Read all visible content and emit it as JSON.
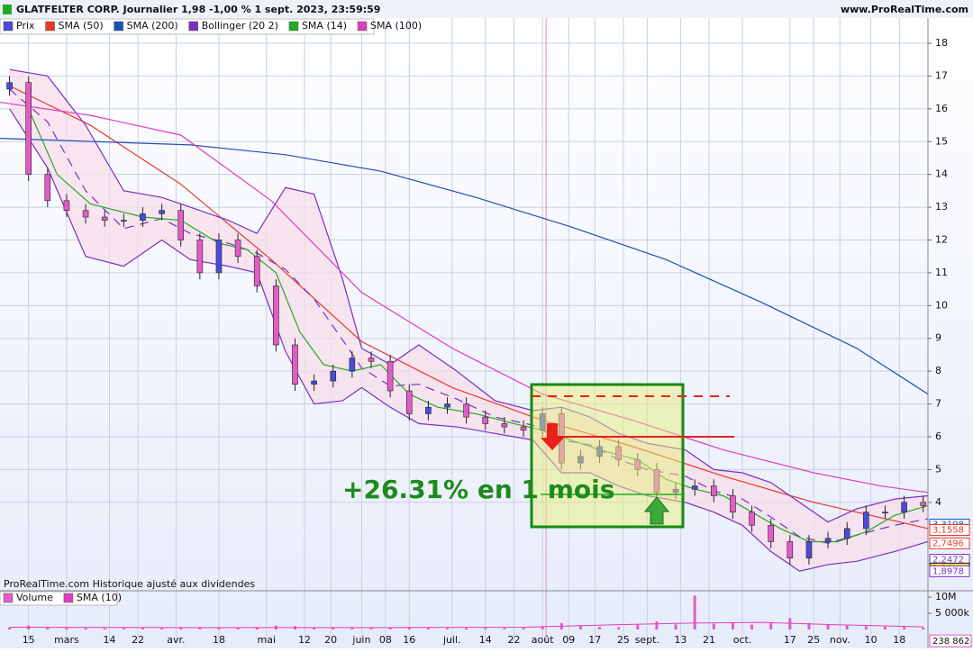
{
  "chart_data": {
    "type": "candlestick",
    "title": "GLATFELTER CORP. Journalier 1,98 -1,00 % 1 sept. 2023, 23:59:59",
    "source": "www.ProRealTime.com",
    "footer": "ProRealTime.com  Historique ajusté aux dividendes",
    "annotation": "+26.31% en 1 mois",
    "xlim": [
      0,
      195
    ],
    "xticks": [
      {
        "value": 6,
        "label": "15"
      },
      {
        "value": 14,
        "label": "mars"
      },
      {
        "value": 23,
        "label": "14"
      },
      {
        "value": 29,
        "label": "22"
      },
      {
        "value": 37,
        "label": "avr."
      },
      {
        "value": 46,
        "label": "18"
      },
      {
        "value": 56,
        "label": "mai"
      },
      {
        "value": 64,
        "label": "12"
      },
      {
        "value": 69.5,
        "label": "20"
      },
      {
        "value": 76,
        "label": "juin"
      },
      {
        "value": 81,
        "label": "08"
      },
      {
        "value": 86,
        "label": "16"
      },
      {
        "value": 95,
        "label": "juil."
      },
      {
        "value": 102,
        "label": "14"
      },
      {
        "value": 108,
        "label": "22"
      },
      {
        "value": 114,
        "label": "août"
      },
      {
        "value": 119.5,
        "label": "09"
      },
      {
        "value": 125,
        "label": "17"
      },
      {
        "value": 131,
        "label": "25"
      },
      {
        "value": 136,
        "label": "sept."
      },
      {
        "value": 143,
        "label": "13"
      },
      {
        "value": 149,
        "label": "21"
      },
      {
        "value": 156,
        "label": "oct."
      },
      {
        "value": 166,
        "label": "17"
      },
      {
        "value": 171,
        "label": "25"
      },
      {
        "value": 176.5,
        "label": "nov."
      },
      {
        "value": 183,
        "label": "10"
      },
      {
        "value": 189,
        "label": "18"
      }
    ],
    "ylim": [
      1.33,
      18.77
    ],
    "yticks": [
      4,
      5,
      6,
      7,
      8,
      9,
      10,
      11,
      12,
      13,
      14,
      15,
      16,
      17,
      18
    ],
    "grid": true,
    "candles": {
      "name": "Prix",
      "up_color": "#4b4bd8",
      "down_color": "#e35bc6",
      "x": [
        2,
        6,
        10,
        14,
        18,
        22,
        26,
        30,
        34,
        38,
        42,
        46,
        50,
        54,
        58,
        62,
        66,
        70,
        74,
        78,
        82,
        86,
        90,
        94,
        98,
        102,
        106,
        110,
        114,
        118,
        122,
        126,
        130,
        134,
        138,
        142,
        146,
        150,
        154,
        158,
        162,
        166,
        170,
        174,
        178,
        182,
        186,
        190,
        194
      ],
      "open": [
        16.6,
        16.8,
        14.0,
        13.2,
        12.9,
        12.7,
        12.6,
        12.6,
        12.8,
        12.9,
        12.0,
        11.0,
        12.0,
        11.5,
        10.6,
        8.8,
        7.6,
        7.7,
        8.0,
        8.4,
        8.3,
        7.4,
        6.7,
        6.9,
        7.0,
        6.6,
        6.4,
        6.3,
        6.2,
        6.7,
        5.2,
        5.4,
        5.7,
        5.3,
        5.0,
        4.3,
        4.4,
        4.5,
        4.2,
        3.7,
        3.3,
        2.8,
        2.3,
        2.8,
        2.9,
        3.2,
        3.7,
        3.7,
        4.0
      ],
      "high": [
        17.0,
        17.0,
        14.2,
        13.4,
        13.1,
        12.9,
        12.8,
        13.0,
        13.1,
        13.1,
        12.2,
        12.2,
        12.2,
        11.7,
        10.8,
        9.0,
        7.9,
        8.2,
        8.6,
        8.6,
        8.5,
        7.6,
        7.1,
        7.2,
        7.2,
        6.8,
        6.6,
        6.5,
        6.9,
        6.9,
        5.6,
        5.9,
        5.9,
        5.5,
        5.2,
        4.6,
        4.7,
        4.7,
        4.4,
        3.9,
        3.5,
        3.0,
        3.0,
        3.1,
        3.4,
        3.9,
        3.9,
        4.2,
        4.2
      ],
      "low": [
        16.4,
        13.8,
        13.0,
        12.7,
        12.5,
        12.4,
        12.4,
        12.4,
        12.6,
        11.8,
        10.8,
        10.8,
        11.3,
        10.4,
        8.6,
        7.4,
        7.4,
        7.5,
        7.8,
        8.1,
        7.2,
        6.5,
        6.5,
        6.7,
        6.4,
        6.2,
        6.1,
        6.0,
        6.0,
        5.0,
        5.0,
        5.2,
        5.1,
        4.8,
        4.1,
        4.1,
        4.2,
        4.0,
        3.5,
        3.1,
        2.6,
        2.1,
        2.1,
        2.6,
        2.7,
        3.0,
        3.5,
        3.5,
        3.7
      ],
      "close": [
        16.8,
        14.0,
        13.2,
        12.9,
        12.7,
        12.6,
        12.6,
        12.8,
        12.9,
        12.0,
        11.0,
        12.0,
        11.5,
        10.6,
        8.8,
        7.6,
        7.7,
        8.0,
        8.4,
        8.3,
        7.4,
        6.7,
        6.9,
        7.0,
        6.6,
        6.4,
        6.3,
        6.2,
        6.7,
        5.2,
        5.4,
        5.7,
        5.3,
        5.0,
        4.3,
        4.4,
        4.5,
        4.2,
        3.7,
        3.3,
        2.8,
        2.3,
        2.8,
        2.9,
        3.2,
        3.7,
        3.7,
        4.0,
        3.9
      ]
    },
    "series": [
      {
        "name": "SMA (50)",
        "color": "#e8392c",
        "x": [
          2,
          19,
          38,
          57,
          76,
          95,
          114,
          133,
          152,
          171,
          195
        ],
        "values": [
          16.7,
          15.5,
          13.7,
          11.4,
          8.9,
          7.5,
          6.5,
          5.7,
          4.8,
          4.0,
          3.2
        ]
      },
      {
        "name": "SMA (200)",
        "color": "#1f4fb5",
        "x": [
          0,
          20,
          40,
          60,
          80,
          100,
          120,
          140,
          160,
          180,
          195
        ],
        "values": [
          15.1,
          15.0,
          14.9,
          14.6,
          14.1,
          13.3,
          12.4,
          11.4,
          10.1,
          8.7,
          7.3
        ]
      },
      {
        "name": "Bollinger (20 2)",
        "color": "#7a2fc0",
        "fill": "#f7dde9",
        "x": [
          2,
          10,
          18,
          26,
          34,
          40,
          48,
          54,
          60,
          66,
          72,
          76,
          82,
          88,
          96,
          104,
          112,
          118,
          124,
          130,
          136,
          144,
          150,
          156,
          162,
          168,
          174,
          180,
          188,
          195
        ],
        "upper": [
          17.2,
          17.0,
          15.5,
          13.5,
          13.3,
          13.0,
          12.6,
          12.2,
          13.6,
          13.4,
          10.8,
          8.7,
          8.2,
          8.8,
          8.0,
          7.1,
          6.8,
          6.9,
          6.6,
          6.1,
          5.8,
          5.6,
          5.0,
          4.9,
          4.6,
          4.0,
          3.4,
          3.8,
          4.1,
          4.2
        ],
        "middle": [
          16.6,
          15.6,
          13.5,
          12.35,
          12.65,
          12.2,
          11.9,
          11.6,
          11.1,
          10.2,
          8.95,
          8.1,
          7.55,
          7.6,
          7.15,
          6.6,
          6.35,
          5.9,
          5.75,
          5.3,
          5.0,
          4.8,
          4.35,
          4.1,
          3.55,
          2.95,
          2.75,
          3.0,
          3.3,
          3.5
        ],
        "lower": [
          16.0,
          14.2,
          11.5,
          11.2,
          12.0,
          11.4,
          11.2,
          11.0,
          8.6,
          7.0,
          7.1,
          7.5,
          6.9,
          6.4,
          6.3,
          6.1,
          5.9,
          4.9,
          4.9,
          4.5,
          4.2,
          4.0,
          3.7,
          3.3,
          2.5,
          1.9,
          2.1,
          2.2,
          2.5,
          2.8
        ]
      },
      {
        "name": "SMA (14)",
        "color": "#22aa22",
        "x": [
          6,
          12,
          19,
          30,
          38,
          46,
          52,
          58,
          63,
          68,
          74,
          80,
          86,
          92,
          100,
          108,
          114,
          120,
          126,
          134,
          140,
          146,
          152,
          158,
          164,
          170,
          176,
          182,
          188,
          195
        ],
        "values": [
          16.0,
          14.0,
          13.1,
          12.7,
          12.6,
          11.9,
          11.7,
          11.0,
          9.2,
          8.2,
          8.0,
          8.2,
          7.3,
          6.9,
          6.7,
          6.4,
          6.2,
          5.9,
          5.6,
          5.3,
          4.7,
          4.4,
          4.2,
          3.7,
          3.2,
          2.8,
          2.8,
          3.1,
          3.6,
          3.9
        ]
      },
      {
        "name": "SMA (100)",
        "color": "#e23cc0",
        "x": [
          0,
          19,
          38,
          57,
          76,
          95,
          114,
          133,
          152,
          171,
          185,
          195
        ],
        "values": [
          16.2,
          15.8,
          15.2,
          13.2,
          10.4,
          8.7,
          7.3,
          6.5,
          5.6,
          4.9,
          4.5,
          4.3
        ]
      }
    ],
    "last_values": [
      {
        "value": 3.3198,
        "label": "3,3198",
        "color": "#1f4fb5"
      },
      {
        "value": 3.1558,
        "label": "3,1558",
        "color": "#e8392c"
      },
      {
        "value": 2.7496,
        "label": "2,7496",
        "color": "#e8392c"
      },
      {
        "value": 2.2472,
        "label": "2,2472",
        "color": "#7a2fc0"
      },
      {
        "value": 1.98,
        "label": "1,98",
        "color": "#111111"
      },
      {
        "value": 1.8978,
        "label": "1,8978",
        "color": "#7a2fc0"
      }
    ],
    "volume": {
      "name": "Volume",
      "color": "#e35bc6",
      "ylim": [
        0,
        11700000
      ],
      "yticks": [
        {
          "value": 10000000,
          "label": "10M"
        },
        {
          "value": 5000000,
          "label": "5 000k"
        }
      ],
      "values": [
        600000,
        1200000,
        700000,
        500000,
        450000,
        400000,
        500000,
        450000,
        400000,
        600000,
        700000,
        500000,
        450000,
        600000,
        1200000,
        1000000,
        700000,
        600000,
        500000,
        450000,
        600000,
        700000,
        500000,
        450000,
        500000,
        400000,
        450000,
        500000,
        900000,
        2000000,
        1200000,
        800000,
        700000,
        1500000,
        2500000,
        1600000,
        10500000,
        1800000,
        2000000,
        1500000,
        2200000,
        3500000,
        2000000,
        1500000,
        1200000,
        1000000,
        800000,
        700000,
        600000
      ],
      "sma": {
        "name": "SMA (10)",
        "color": "#e23cc0",
        "x": [
          2,
          40,
          80,
          110,
          130,
          146,
          160,
          175,
          194
        ],
        "values": [
          700000,
          600000,
          600000,
          700000,
          1500000,
          2000000,
          2200000,
          1500000,
          800000
        ]
      },
      "last": {
        "value": 238862,
        "label": "238 862"
      }
    }
  }
}
